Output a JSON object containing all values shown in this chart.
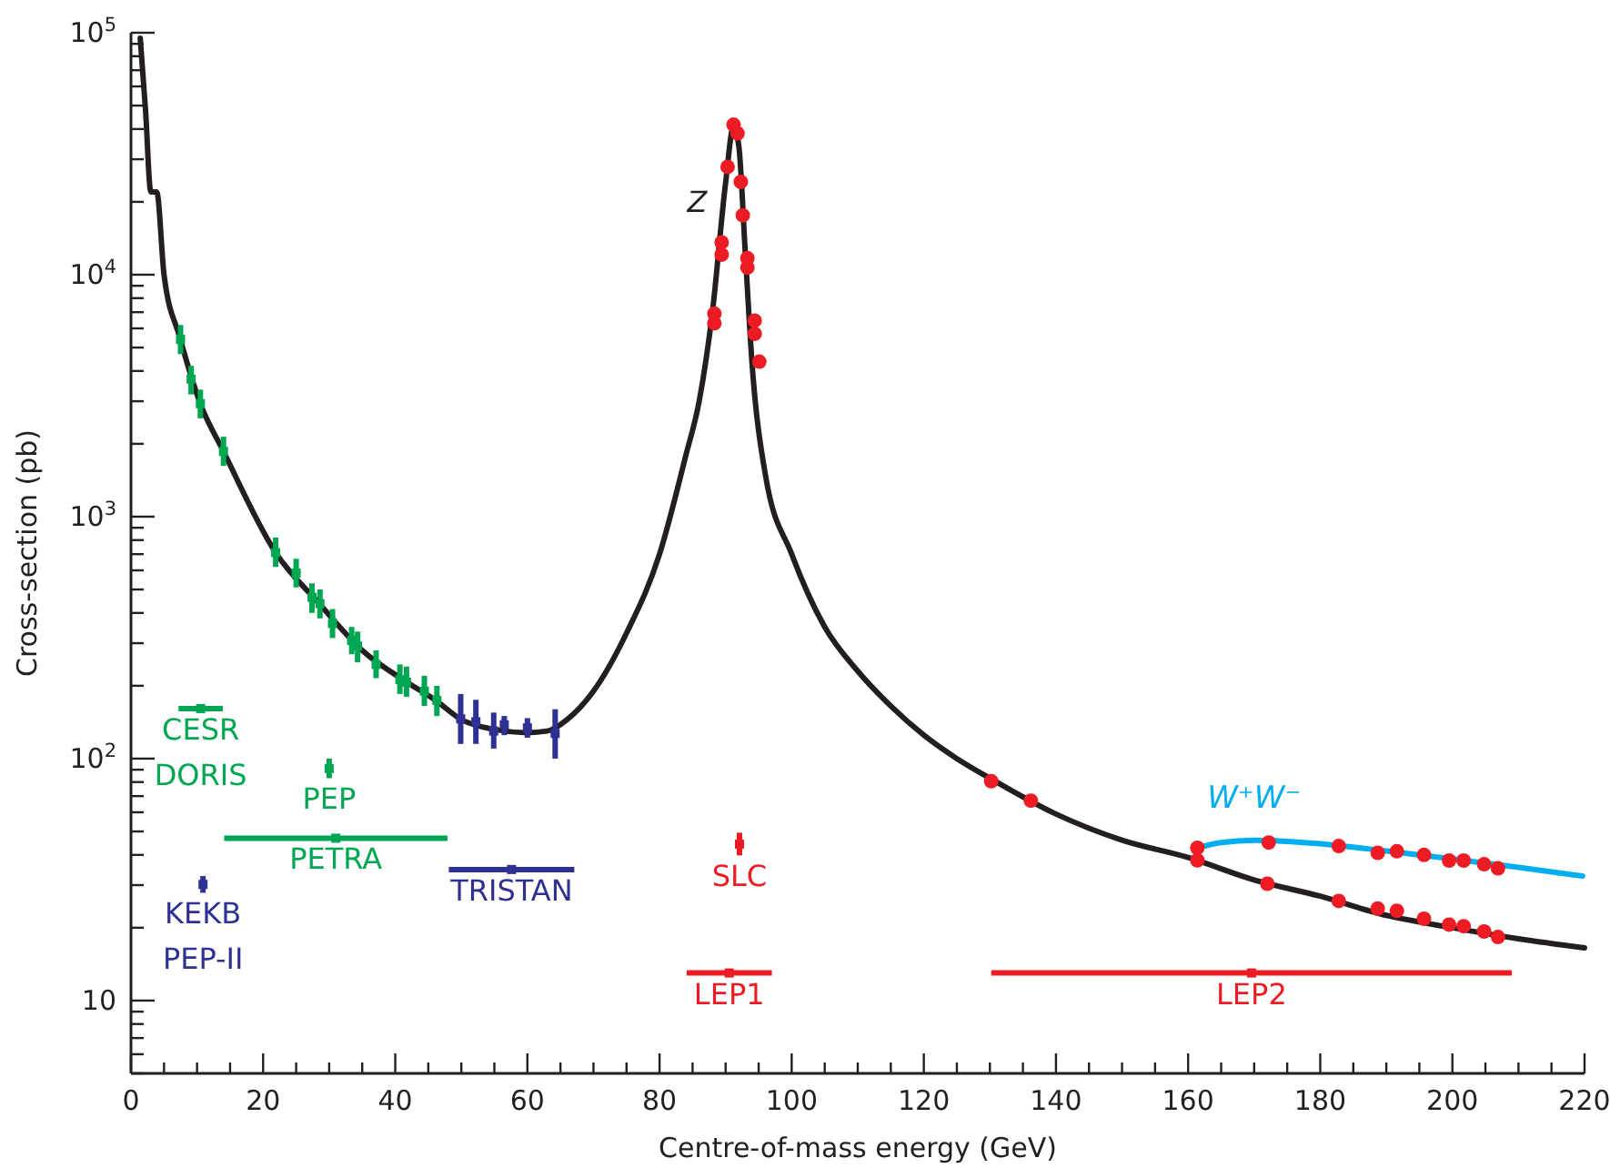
{
  "chart_data": {
    "type": "line",
    "xlabel": "Centre-of-mass energy (GeV)",
    "ylabel": "Cross-section (pb)",
    "log": "y",
    "grid": false,
    "legend": false,
    "xlim": [
      0,
      220
    ],
    "ylim": [
      5,
      100000
    ],
    "xticks": [
      0,
      {
        "value": 5,
        "label": null
      },
      {
        "value": 10,
        "label": null
      },
      {
        "value": 15,
        "label": null
      },
      20,
      {
        "value": 25,
        "label": null
      },
      {
        "value": 30,
        "label": null
      },
      {
        "value": 35,
        "label": null
      },
      40,
      {
        "value": 45,
        "label": null
      },
      {
        "value": 50,
        "label": null
      },
      {
        "value": 55,
        "label": null
      },
      60,
      {
        "value": 65,
        "label": null
      },
      {
        "value": 70,
        "label": null
      },
      {
        "value": 75,
        "label": null
      },
      80,
      {
        "value": 85,
        "label": null
      },
      {
        "value": 90,
        "label": null
      },
      {
        "value": 95,
        "label": null
      },
      100,
      {
        "value": 105,
        "label": null
      },
      {
        "value": 110,
        "label": null
      },
      {
        "value": 115,
        "label": null
      },
      120,
      {
        "value": 125,
        "label": null
      },
      {
        "value": 130,
        "label": null
      },
      {
        "value": 135,
        "label": null
      },
      140,
      {
        "value": 145,
        "label": null
      },
      {
        "value": 150,
        "label": null
      },
      {
        "value": 155,
        "label": null
      },
      160,
      {
        "value": 165,
        "label": null
      },
      {
        "value": 170,
        "label": null
      },
      {
        "value": 175,
        "label": null
      },
      180,
      {
        "value": 185,
        "label": null
      },
      {
        "value": 190,
        "label": null
      },
      {
        "value": 195,
        "label": null
      },
      200,
      {
        "value": 205,
        "label": null
      },
      {
        "value": 210,
        "label": null
      },
      {
        "value": 215,
        "label": null
      },
      220
    ],
    "yticks": [
      {
        "value": 5,
        "label": null
      },
      {
        "value": 6,
        "label": null
      },
      {
        "value": 7,
        "label": null
      },
      {
        "value": 8,
        "label": null
      },
      {
        "value": 9,
        "label": null
      },
      10,
      {
        "value": 20,
        "label": null
      },
      {
        "value": 30,
        "label": null
      },
      {
        "value": 40,
        "label": null
      },
      {
        "value": 50,
        "label": null
      },
      {
        "value": 60,
        "label": null
      },
      {
        "value": 70,
        "label": null
      },
      {
        "value": 80,
        "label": null
      },
      {
        "value": 90,
        "label": null
      },
      {
        "value": 100,
        "label": "10$^{2}$"
      },
      {
        "value": 200,
        "label": null
      },
      {
        "value": 300,
        "label": null
      },
      {
        "value": 400,
        "label": null
      },
      {
        "value": 500,
        "label": null
      },
      {
        "value": 600,
        "label": null
      },
      {
        "value": 700,
        "label": null
      },
      {
        "value": 800,
        "label": null
      },
      {
        "value": 900,
        "label": null
      },
      {
        "value": 1000,
        "label": "10$^{3}$"
      },
      {
        "value": 2000,
        "label": null
      },
      {
        "value": 3000,
        "label": null
      },
      {
        "value": 4000,
        "label": null
      },
      {
        "value": 5000,
        "label": null
      },
      {
        "value": 6000,
        "label": null
      },
      {
        "value": 7000,
        "label": null
      },
      {
        "value": 8000,
        "label": null
      },
      {
        "value": 9000,
        "label": null
      },
      {
        "value": 10000,
        "label": "10$^{4}$"
      },
      {
        "value": 20000,
        "label": null
      },
      {
        "value": 30000,
        "label": null
      },
      {
        "value": 40000,
        "label": null
      },
      {
        "value": 50000,
        "label": null
      },
      {
        "value": 60000,
        "label": null
      },
      {
        "value": 70000,
        "label": null
      },
      {
        "value": 80000,
        "label": null
      },
      {
        "value": 90000,
        "label": null
      },
      {
        "value": 100000,
        "label": "10$^{5}$"
      }
    ],
    "annotations": [
      "Z"
    ],
    "series": [
      {
        "color": "#231f20",
        "marker": "none",
        "x": [
          1.4,
          2.2,
          3.0,
          3.9,
          5.0,
          7.4,
          10.5,
          14,
          21.9,
          28.4,
          35,
          42,
          46,
          50,
          55,
          60,
          63,
          66,
          70,
          75,
          80,
          84,
          86,
          88,
          90,
          91.2,
          92,
          93,
          94,
          96,
          100,
          105,
          110,
          115,
          120,
          125,
          130,
          140,
          150,
          160,
          170,
          180,
          190,
          200,
          210,
          220
        ],
        "values": [
          95000,
          48000,
          22000,
          22000,
          10000,
          5500,
          2930,
          1860,
          710,
          440,
          280,
          205,
          175,
          145,
          132,
          128,
          130,
          145,
          190,
          330,
          700,
          1800,
          3000,
          7000,
          24000,
          41000,
          34000,
          12000,
          4300,
          1500,
          700,
          350,
          230,
          165,
          125,
          100,
          83,
          59,
          46,
          39,
          31.5,
          27,
          22.5,
          20,
          18,
          16.5
        ]
      },
      {
        "name": "W⁺W⁻",
        "color": "#00aeef",
        "marker": "none",
        "x": [
          161.4,
          165,
          170,
          180,
          190,
          200,
          210,
          219.7
        ],
        "values": [
          42.8,
          45,
          46,
          44.5,
          41.5,
          38.5,
          35.5,
          32.7
        ]
      },
      {
        "type": "scatter",
        "color": "#00a651",
        "marker": "square",
        "x": [
          7.5,
          9.1,
          10.5,
          14,
          21.9,
          25,
          27.4,
          28.6,
          30.5,
          33.4,
          34.3,
          37.1,
          40.7,
          41.7,
          44.4,
          46.3
        ],
        "values": [
          5400,
          3700,
          2930,
          1860,
          710,
          585,
          464,
          437,
          362,
          308,
          292,
          245,
          212,
          207,
          190,
          174
        ],
        "errors": [
          [
            4700,
            6200
          ],
          [
            3200,
            4200
          ],
          [
            2550,
            3350
          ],
          [
            1620,
            2140
          ],
          [
            620,
            820
          ],
          [
            510,
            670
          ],
          [
            400,
            530
          ],
          [
            380,
            500
          ],
          [
            315,
            415
          ],
          [
            270,
            350
          ],
          [
            250,
            335
          ],
          [
            215,
            280
          ],
          [
            185,
            245
          ],
          [
            180,
            240
          ],
          [
            165,
            220
          ],
          [
            150,
            200
          ]
        ]
      },
      {
        "type": "scatter",
        "color": "#2e3192",
        "marker": "square",
        "x": [
          49.9,
          52.2,
          54.9,
          56.5,
          60,
          64.2
        ],
        "values": [
          146,
          142,
          130,
          138,
          134,
          127
        ],
        "errors": [
          [
            115,
            185
          ],
          [
            115,
            175
          ],
          [
            110,
            155
          ],
          [
            125,
            150
          ],
          [
            122,
            147
          ],
          [
            100,
            160
          ]
        ]
      },
      {
        "type": "scatter",
        "color": "#ed1c24",
        "marker": "circle",
        "x": [
          91.2,
          91.8,
          90.3,
          92.3,
          92.6,
          89.4,
          89.4,
          93.3,
          93.3,
          88.3,
          88.3,
          94.4,
          94.4,
          95.1
        ],
        "values": [
          41700,
          38400,
          27900,
          24200,
          17600,
          13600,
          12100,
          11700,
          10700,
          6900,
          6300,
          6460,
          5700,
          4370
        ]
      },
      {
        "type": "scatter",
        "color": "#ed1c24",
        "marker": "circle",
        "x": [
          130.2,
          136.2,
          161.4,
          172,
          182.8,
          188.7,
          191.6,
          195.7,
          199.5,
          201.7,
          204.8,
          206.9
        ],
        "values": [
          80.7,
          67,
          38,
          30.4,
          25.8,
          24,
          23.5,
          21.8,
          20.6,
          20.3,
          19.3,
          18.3
        ]
      },
      {
        "type": "scatter",
        "color": "#ed1c24",
        "marker": "circle",
        "x": [
          161.4,
          172.2,
          182.8,
          188.7,
          191.6,
          195.7,
          199.5,
          201.7,
          204.8,
          206.9
        ],
        "values": [
          42.8,
          45,
          43.5,
          40.8,
          41.4,
          40,
          37.9,
          37.9,
          36.6,
          35.2
        ]
      },
      {
        "type": "scatter",
        "name": "CESR\nDORIS",
        "color": "#00a651",
        "marker": "square",
        "x": [
          10.55
        ],
        "values": [
          161
        ],
        "xerrors": [
          [
            7.2,
            13.9
          ]
        ]
      },
      {
        "type": "scatter",
        "name": "PEP",
        "color": "#00a651",
        "marker": "square",
        "x": [
          30
        ],
        "values": [
          91
        ],
        "errors": [
          [
            83,
            100
          ]
        ]
      },
      {
        "type": "scatter",
        "name": "PETRA",
        "color": "#00a651",
        "marker": "square",
        "x": [
          31
        ],
        "values": [
          46.9
        ],
        "xerrors": [
          [
            14.1,
            47.9
          ]
        ]
      },
      {
        "type": "scatter",
        "name": "KEKB\nPEP-II",
        "color": "#2e3192",
        "marker": "square",
        "x": [
          10.9
        ],
        "values": [
          30.2
        ],
        "errors": [
          [
            27.9,
            32.7
          ]
        ]
      },
      {
        "type": "scatter",
        "name": "TRISTAN",
        "color": "#2e3192",
        "marker": "square",
        "x": [
          57.6
        ],
        "values": [
          34.8
        ],
        "xerrors": [
          [
            48.1,
            67.1
          ]
        ]
      },
      {
        "type": "scatter",
        "name": "SLC",
        "color": "#ed1c24",
        "marker": "square",
        "x": [
          92.1
        ],
        "values": [
          44.3
        ],
        "errors": [
          [
            39.8,
            49.4
          ]
        ]
      },
      {
        "type": "scatter",
        "name": "LEP1",
        "color": "#ed1c24",
        "marker": "square",
        "x": [
          90.55
        ],
        "values": [
          13
        ],
        "xerrors": [
          [
            84.1,
            97
          ]
        ]
      },
      {
        "type": "scatter",
        "name": "LEP2",
        "color": "#ed1c24",
        "marker": "square",
        "x": [
          169.6
        ],
        "values": [
          13
        ],
        "xerrors": [
          [
            130.2,
            209
          ]
        ]
      }
    ]
  }
}
